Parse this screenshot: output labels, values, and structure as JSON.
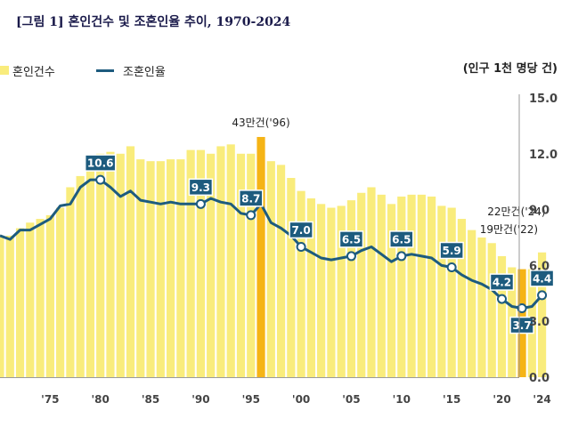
{
  "title": "[그림 1] 혼인건수 및 조혼인율 추이, 1970-2024",
  "unit_label": "(인구 1천 명당 건)",
  "chart_data": {
    "type": "bar",
    "series": [
      {
        "name": "혼인건수",
        "x": [
          1970,
          1971,
          1972,
          1973,
          1974,
          1975,
          1976,
          1977,
          1978,
          1979,
          1980,
          1981,
          1982,
          1983,
          1984,
          1985,
          1986,
          1987,
          1988,
          1989,
          1990,
          1991,
          1992,
          1993,
          1994,
          1995,
          1996,
          1997,
          1998,
          1999,
          2000,
          2001,
          2002,
          2003,
          2004,
          2005,
          2006,
          2007,
          2008,
          2009,
          2010,
          2011,
          2012,
          2013,
          2014,
          2015,
          2016,
          2017,
          2018,
          2019,
          2020,
          2021,
          2022,
          2023,
          2024
        ],
        "values": [
          7.6,
          7.6,
          8.0,
          8.3,
          8.5,
          8.7,
          9.1,
          10.2,
          10.8,
          11.4,
          12.0,
          12.1,
          12.0,
          12.4,
          11.7,
          11.6,
          11.6,
          11.7,
          11.7,
          12.2,
          12.2,
          12.0,
          12.4,
          12.5,
          12.0,
          12.0,
          12.9,
          11.6,
          11.4,
          10.7,
          10.0,
          9.6,
          9.3,
          9.1,
          9.2,
          9.5,
          9.9,
          10.2,
          9.8,
          9.3,
          9.7,
          9.8,
          9.8,
          9.7,
          9.2,
          9.1,
          8.5,
          7.9,
          7.5,
          7.2,
          6.5,
          5.9,
          5.8,
          5.8,
          6.7
        ],
        "highlight": [
          1996,
          2022
        ]
      },
      {
        "name": "조혼인율",
        "x": [
          1970,
          1971,
          1972,
          1973,
          1974,
          1975,
          1976,
          1977,
          1978,
          1979,
          1980,
          1981,
          1982,
          1983,
          1984,
          1985,
          1986,
          1987,
          1988,
          1989,
          1990,
          1991,
          1992,
          1993,
          1994,
          1995,
          1996,
          1997,
          1998,
          1999,
          2000,
          2001,
          2002,
          2003,
          2004,
          2005,
          2006,
          2007,
          2008,
          2009,
          2010,
          2011,
          2012,
          2013,
          2014,
          2015,
          2016,
          2017,
          2018,
          2019,
          2020,
          2021,
          2022,
          2023,
          2024
        ],
        "values": [
          7.6,
          7.4,
          7.9,
          7.9,
          8.2,
          8.5,
          9.2,
          9.3,
          10.2,
          10.6,
          10.6,
          10.2,
          9.7,
          10.0,
          9.5,
          9.4,
          9.3,
          9.4,
          9.3,
          9.3,
          9.3,
          9.6,
          9.4,
          9.3,
          8.8,
          8.7,
          9.3,
          8.3,
          8.0,
          7.6,
          7.0,
          6.7,
          6.4,
          6.3,
          6.4,
          6.5,
          6.8,
          7.0,
          6.6,
          6.2,
          6.5,
          6.6,
          6.5,
          6.4,
          6.0,
          5.9,
          5.5,
          5.2,
          5.0,
          4.7,
          4.2,
          3.8,
          3.7,
          3.8,
          4.4
        ],
        "labels": [
          {
            "x": 1980,
            "text": "10.6"
          },
          {
            "x": 1990,
            "text": "9.3"
          },
          {
            "x": 1995,
            "text": "8.7"
          },
          {
            "x": 2000,
            "text": "7.0"
          },
          {
            "x": 2005,
            "text": "6.5"
          },
          {
            "x": 2010,
            "text": "6.5"
          },
          {
            "x": 2015,
            "text": "5.9"
          },
          {
            "x": 2020,
            "text": "4.2"
          },
          {
            "x": 2022,
            "text": "3.7"
          },
          {
            "x": 2024,
            "text": "4.4"
          }
        ]
      }
    ],
    "annotations": [
      {
        "x": 1996,
        "text": "43만건('96)"
      },
      {
        "x": 2024,
        "text": "22만건('24)"
      },
      {
        "x": 2022,
        "text": "19만건('22)"
      }
    ],
    "x_ticks": [
      {
        "x": 1975,
        "label": "'75"
      },
      {
        "x": 1980,
        "label": "'80"
      },
      {
        "x": 1985,
        "label": "'85"
      },
      {
        "x": 1990,
        "label": "'90"
      },
      {
        "x": 1995,
        "label": "'95"
      },
      {
        "x": 2000,
        "label": "'00"
      },
      {
        "x": 2005,
        "label": "'05"
      },
      {
        "x": 2010,
        "label": "'10"
      },
      {
        "x": 2015,
        "label": "'15"
      },
      {
        "x": 2020,
        "label": "'20"
      },
      {
        "x": 2024,
        "label": "'24"
      }
    ],
    "y_ticks": [
      "0.0",
      "3.0",
      "6.0",
      "9.0",
      "12.0",
      "15.0"
    ],
    "ylim": [
      0,
      15
    ],
    "y_axis_position": "right",
    "grid": false,
    "legend_position": "top-left",
    "colors": {
      "bar": "#f9ec7c",
      "bar_highlight": "#f5b416",
      "line": "#1d5b7e",
      "label_bg": "#1d5b7e",
      "label_text": "#ffffff"
    }
  }
}
